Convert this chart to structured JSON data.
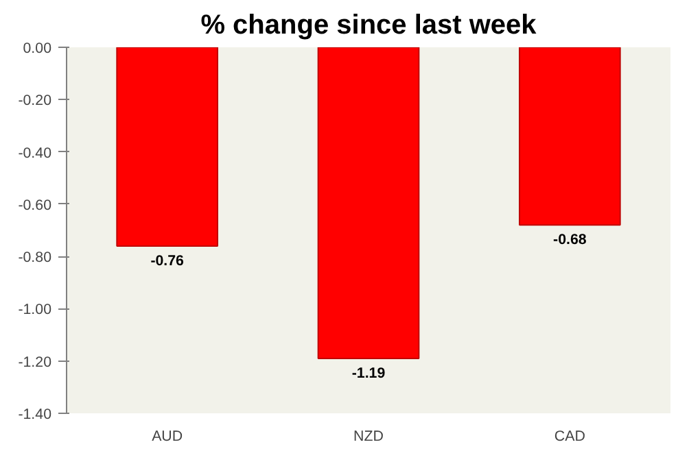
{
  "chart_data": {
    "type": "bar",
    "title": "% change since last week",
    "categories": [
      "AUD",
      "NZD",
      "CAD"
    ],
    "values": [
      -0.76,
      -1.19,
      -0.68
    ],
    "color": "#ff0000",
    "ylim": [
      -1.4,
      0
    ],
    "yticks": [
      {
        "value": 0,
        "label": "0.00"
      },
      {
        "value": -0.2,
        "label": "-0.20"
      },
      {
        "value": -0.4,
        "label": "-0.40"
      },
      {
        "value": -0.6,
        "label": "-0.60"
      },
      {
        "value": -0.8,
        "label": "-0.80"
      },
      {
        "value": -1.0,
        "label": "-1.00"
      },
      {
        "value": -1.2,
        "label": "-1.20"
      },
      {
        "value": -1.4,
        "label": "-1.40"
      }
    ],
    "data_labels": true
  }
}
